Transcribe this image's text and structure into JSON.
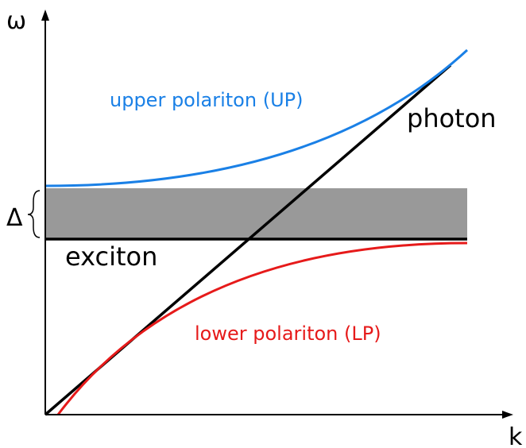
{
  "axes": {
    "y_label": "ω",
    "x_label": "k"
  },
  "labels": {
    "upper_polariton": "upper polariton (UP)",
    "photon": "photon",
    "gap": "Δ",
    "exciton": "exciton",
    "lower_polariton": "lower polariton (LP)"
  }
}
